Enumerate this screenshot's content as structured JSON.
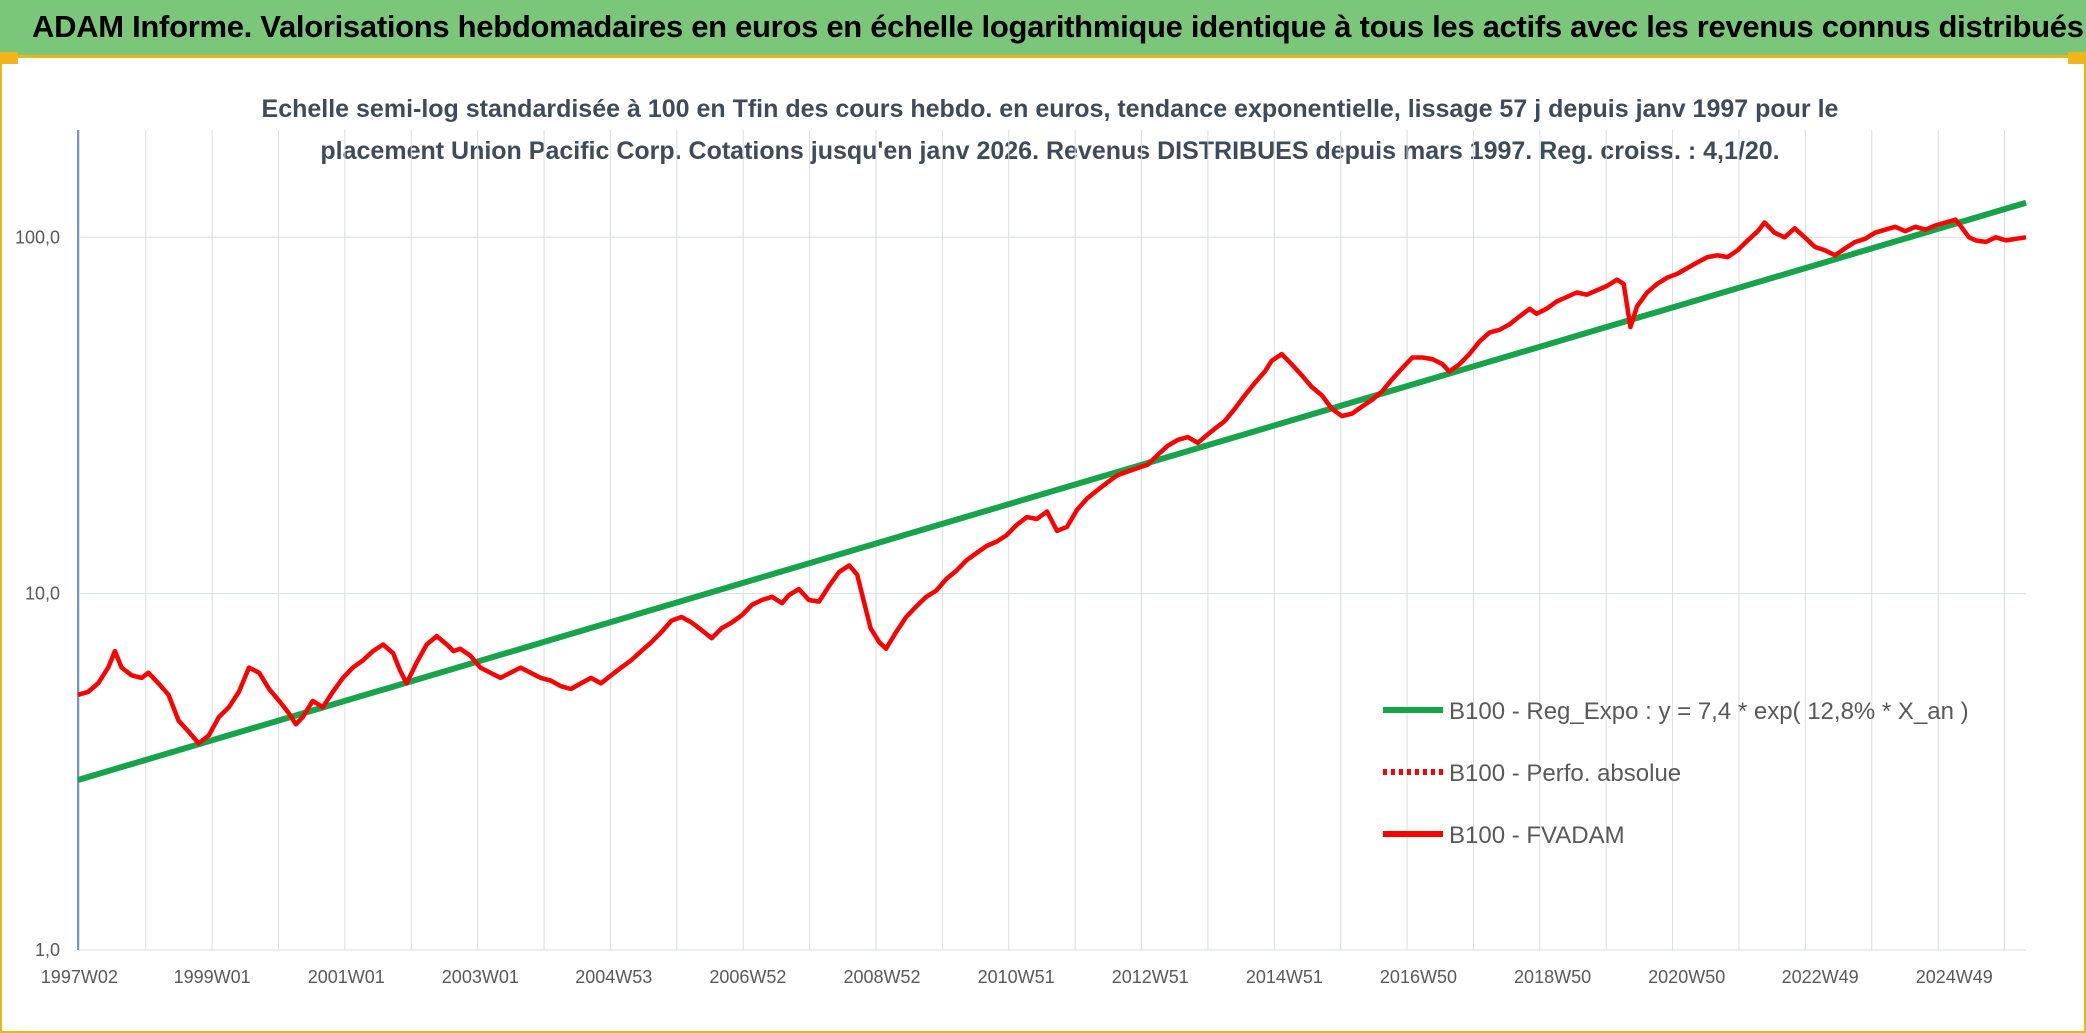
{
  "banner": {
    "title": "ADAM Informe. Valorisations hebdomadaires en euros en échelle logarithmique identique à tous les actifs avec les revenus connus distribués"
  },
  "chart_data": {
    "type": "line",
    "title_line1": "Echelle semi-log standardisée à 100 en Tfin des cours hebdo. en euros, tendance exponentielle, lissage 57 j depuis janv 1997 pour le",
    "title_line2": "placement Union Pacific Corp. Cotations jusqu'en janv 2026. Revenus DISTRIBUES depuis mars 1997. Reg. croiss. : 4,1/20.",
    "y_scale": "log",
    "ylim": [
      1,
      200
    ],
    "y_ticks": [
      {
        "value": 1,
        "label": "1,0"
      },
      {
        "value": 10,
        "label": "10,0"
      },
      {
        "value": 100,
        "label": "100,0"
      }
    ],
    "xlim": [
      1997.0,
      2026.05
    ],
    "x_ticks": [
      {
        "t": 1997.02,
        "label": "1997W02"
      },
      {
        "t": 1999.0,
        "label": "1999W01"
      },
      {
        "t": 2001.0,
        "label": "2001W01"
      },
      {
        "t": 2003.0,
        "label": "2003W01"
      },
      {
        "t": 2004.99,
        "label": "2004W53"
      },
      {
        "t": 2006.99,
        "label": "2006W52"
      },
      {
        "t": 2008.99,
        "label": "2008W52"
      },
      {
        "t": 2010.99,
        "label": "2010W51"
      },
      {
        "t": 2012.99,
        "label": "2012W51"
      },
      {
        "t": 2014.99,
        "label": "2014W51"
      },
      {
        "t": 2016.99,
        "label": "2016W50"
      },
      {
        "t": 2018.99,
        "label": "2018W50"
      },
      {
        "t": 2020.99,
        "label": "2020W50"
      },
      {
        "t": 2022.98,
        "label": "2022W49"
      },
      {
        "t": 2024.98,
        "label": "2024W49"
      }
    ],
    "grid": "vertical and horizontal",
    "legend_position": "lower-right",
    "series": [
      {
        "name": "B100 - Reg_Expo : y = 7,4 * exp( 12,8% *  X_an )",
        "color": "#16a44a",
        "style": "solid",
        "points": [
          [
            1997.0,
            3.0
          ],
          [
            2026.05,
            125
          ]
        ]
      },
      {
        "name": "B100 - Perfo. absolue",
        "color": "#ff0000",
        "style": "dotted",
        "points": []
      },
      {
        "name": "B100 - FVADAM",
        "color": "#ff0000",
        "style": "solid",
        "points": [
          [
            1997.0,
            5.2
          ],
          [
            1997.15,
            5.3
          ],
          [
            1997.3,
            5.6
          ],
          [
            1997.45,
            6.2
          ],
          [
            1997.55,
            6.9
          ],
          [
            1997.65,
            6.2
          ],
          [
            1997.8,
            5.9
          ],
          [
            1997.95,
            5.8
          ],
          [
            1998.05,
            6.0
          ],
          [
            1998.2,
            5.6
          ],
          [
            1998.35,
            5.2
          ],
          [
            1998.5,
            4.4
          ],
          [
            1998.65,
            4.1
          ],
          [
            1998.8,
            3.8
          ],
          [
            1998.95,
            4.0
          ],
          [
            1999.1,
            4.5
          ],
          [
            1999.25,
            4.8
          ],
          [
            1999.4,
            5.3
          ],
          [
            1999.55,
            6.2
          ],
          [
            1999.7,
            6.0
          ],
          [
            1999.85,
            5.4
          ],
          [
            2000.0,
            5.0
          ],
          [
            2000.15,
            4.6
          ],
          [
            2000.25,
            4.3
          ],
          [
            2000.35,
            4.5
          ],
          [
            2000.5,
            5.0
          ],
          [
            2000.65,
            4.8
          ],
          [
            2000.8,
            5.3
          ],
          [
            2000.95,
            5.8
          ],
          [
            2001.1,
            6.2
          ],
          [
            2001.25,
            6.5
          ],
          [
            2001.4,
            6.9
          ],
          [
            2001.55,
            7.2
          ],
          [
            2001.7,
            6.8
          ],
          [
            2001.8,
            6.1
          ],
          [
            2001.9,
            5.6
          ],
          [
            2002.05,
            6.4
          ],
          [
            2002.2,
            7.2
          ],
          [
            2002.35,
            7.6
          ],
          [
            2002.5,
            7.2
          ],
          [
            2002.6,
            6.9
          ],
          [
            2002.7,
            7.0
          ],
          [
            2002.85,
            6.7
          ],
          [
            2003.0,
            6.2
          ],
          [
            2003.15,
            6.0
          ],
          [
            2003.3,
            5.8
          ],
          [
            2003.45,
            6.0
          ],
          [
            2003.6,
            6.2
          ],
          [
            2003.75,
            6.0
          ],
          [
            2003.9,
            5.8
          ],
          [
            2004.05,
            5.7
          ],
          [
            2004.2,
            5.5
          ],
          [
            2004.35,
            5.4
          ],
          [
            2004.5,
            5.6
          ],
          [
            2004.65,
            5.8
          ],
          [
            2004.8,
            5.6
          ],
          [
            2004.95,
            5.9
          ],
          [
            2005.1,
            6.2
          ],
          [
            2005.25,
            6.5
          ],
          [
            2005.4,
            6.9
          ],
          [
            2005.55,
            7.3
          ],
          [
            2005.7,
            7.8
          ],
          [
            2005.85,
            8.4
          ],
          [
            2006.0,
            8.6
          ],
          [
            2006.15,
            8.3
          ],
          [
            2006.3,
            7.9
          ],
          [
            2006.45,
            7.5
          ],
          [
            2006.6,
            8.0
          ],
          [
            2006.75,
            8.3
          ],
          [
            2006.9,
            8.7
          ],
          [
            2007.05,
            9.3
          ],
          [
            2007.2,
            9.6
          ],
          [
            2007.35,
            9.8
          ],
          [
            2007.5,
            9.4
          ],
          [
            2007.6,
            9.9
          ],
          [
            2007.75,
            10.3
          ],
          [
            2007.9,
            9.6
          ],
          [
            2008.05,
            9.5
          ],
          [
            2008.2,
            10.5
          ],
          [
            2008.35,
            11.5
          ],
          [
            2008.5,
            12.0
          ],
          [
            2008.62,
            11.3
          ],
          [
            2008.72,
            9.5
          ],
          [
            2008.82,
            8.0
          ],
          [
            2008.95,
            7.3
          ],
          [
            2009.05,
            7.0
          ],
          [
            2009.2,
            7.8
          ],
          [
            2009.35,
            8.6
          ],
          [
            2009.5,
            9.2
          ],
          [
            2009.65,
            9.8
          ],
          [
            2009.8,
            10.2
          ],
          [
            2009.95,
            11.0
          ],
          [
            2010.1,
            11.6
          ],
          [
            2010.25,
            12.4
          ],
          [
            2010.4,
            13.0
          ],
          [
            2010.55,
            13.6
          ],
          [
            2010.7,
            14.0
          ],
          [
            2010.85,
            14.6
          ],
          [
            2011.0,
            15.6
          ],
          [
            2011.15,
            16.4
          ],
          [
            2011.3,
            16.2
          ],
          [
            2011.45,
            17.0
          ],
          [
            2011.6,
            15.0
          ],
          [
            2011.75,
            15.4
          ],
          [
            2011.9,
            17.2
          ],
          [
            2012.05,
            18.5
          ],
          [
            2012.2,
            19.5
          ],
          [
            2012.35,
            20.5
          ],
          [
            2012.5,
            21.5
          ],
          [
            2012.65,
            22.0
          ],
          [
            2012.8,
            22.5
          ],
          [
            2012.95,
            23.0
          ],
          [
            2013.1,
            24.5
          ],
          [
            2013.25,
            26.0
          ],
          [
            2013.4,
            27.0
          ],
          [
            2013.55,
            27.5
          ],
          [
            2013.7,
            26.5
          ],
          [
            2013.85,
            28.0
          ],
          [
            2013.95,
            29.0
          ],
          [
            2014.1,
            30.5
          ],
          [
            2014.25,
            33.0
          ],
          [
            2014.4,
            36.0
          ],
          [
            2014.55,
            39.0
          ],
          [
            2014.7,
            42.0
          ],
          [
            2014.8,
            45.0
          ],
          [
            2014.95,
            47.0
          ],
          [
            2015.1,
            44.0
          ],
          [
            2015.25,
            41.0
          ],
          [
            2015.4,
            38.0
          ],
          [
            2015.55,
            36.0
          ],
          [
            2015.7,
            33.0
          ],
          [
            2015.85,
            31.5
          ],
          [
            2016.0,
            32.0
          ],
          [
            2016.15,
            33.5
          ],
          [
            2016.3,
            35.0
          ],
          [
            2016.45,
            37.0
          ],
          [
            2016.6,
            40.0
          ],
          [
            2016.75,
            43.0
          ],
          [
            2016.9,
            46.0
          ],
          [
            2017.05,
            46.0
          ],
          [
            2017.2,
            45.5
          ],
          [
            2017.35,
            44.0
          ],
          [
            2017.45,
            42.0
          ],
          [
            2017.6,
            44.0
          ],
          [
            2017.75,
            47.0
          ],
          [
            2017.9,
            51.0
          ],
          [
            2018.05,
            54.0
          ],
          [
            2018.2,
            55.0
          ],
          [
            2018.35,
            57.0
          ],
          [
            2018.5,
            60.0
          ],
          [
            2018.65,
            63.0
          ],
          [
            2018.75,
            61.0
          ],
          [
            2018.9,
            63.0
          ],
          [
            2019.05,
            66.0
          ],
          [
            2019.2,
            68.0
          ],
          [
            2019.35,
            70.0
          ],
          [
            2019.5,
            69.0
          ],
          [
            2019.65,
            71.0
          ],
          [
            2019.8,
            73.0
          ],
          [
            2019.95,
            76.0
          ],
          [
            2020.05,
            74.0
          ],
          [
            2020.15,
            56.0
          ],
          [
            2020.25,
            64.0
          ],
          [
            2020.4,
            70.0
          ],
          [
            2020.55,
            74.0
          ],
          [
            2020.7,
            77.0
          ],
          [
            2020.85,
            79.0
          ],
          [
            2021.0,
            82.0
          ],
          [
            2021.15,
            85.0
          ],
          [
            2021.3,
            88.0
          ],
          [
            2021.45,
            89.0
          ],
          [
            2021.6,
            88.0
          ],
          [
            2021.75,
            92.0
          ],
          [
            2021.9,
            98.0
          ],
          [
            2022.05,
            104.0
          ],
          [
            2022.15,
            110.0
          ],
          [
            2022.3,
            103.0
          ],
          [
            2022.45,
            100.0
          ],
          [
            2022.6,
            106.0
          ],
          [
            2022.75,
            100.0
          ],
          [
            2022.9,
            94.0
          ],
          [
            2023.05,
            92.0
          ],
          [
            2023.2,
            89.0
          ],
          [
            2023.35,
            93.0
          ],
          [
            2023.5,
            97.0
          ],
          [
            2023.65,
            99.0
          ],
          [
            2023.8,
            103.0
          ],
          [
            2023.95,
            105.0
          ],
          [
            2024.1,
            107.0
          ],
          [
            2024.25,
            104.0
          ],
          [
            2024.4,
            107.0
          ],
          [
            2024.55,
            105.0
          ],
          [
            2024.7,
            108.0
          ],
          [
            2024.85,
            110.0
          ],
          [
            2025.0,
            112.0
          ],
          [
            2025.1,
            106.0
          ],
          [
            2025.2,
            100.0
          ],
          [
            2025.3,
            98.0
          ],
          [
            2025.45,
            97.0
          ],
          [
            2025.6,
            100.0
          ],
          [
            2025.75,
            98.0
          ],
          [
            2025.9,
            99.0
          ],
          [
            2026.05,
            100.0
          ]
        ]
      }
    ]
  }
}
